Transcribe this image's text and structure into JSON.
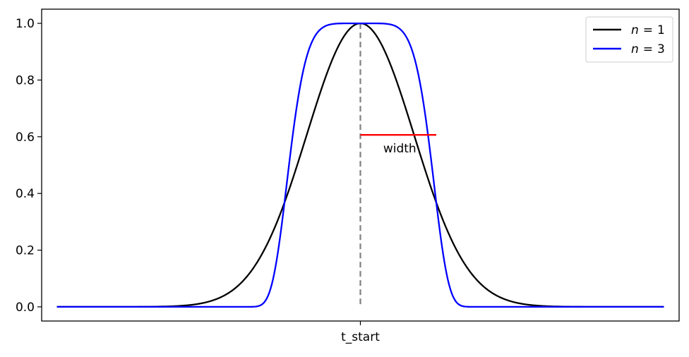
{
  "chart_data": {
    "type": "line",
    "title": "",
    "xlabel": "",
    "ylabel": "",
    "x_range": [
      -4,
      4
    ],
    "xlim": [
      -4.2,
      4.2
    ],
    "ylim": [
      -0.05,
      1.05
    ],
    "yticks": [
      0.0,
      0.2,
      0.4,
      0.6,
      0.8,
      1.0
    ],
    "ytick_labels": [
      "0.0",
      "0.2",
      "0.4",
      "0.6",
      "0.8",
      "1.0"
    ],
    "xticks": [
      0
    ],
    "xtick_labels": [
      "t_start"
    ],
    "grid": false,
    "legend_position": "top-right",
    "series": [
      {
        "name": "n = 1",
        "legend_label": "n",
        "legend_value": "1",
        "color": "#000000",
        "formula": "exp(-(x/width)^2)",
        "x": [
          -4.0,
          -3.5,
          -3.0,
          -2.5,
          -2.0,
          -1.5,
          -1.2,
          -1.0,
          -0.8,
          -0.5,
          -0.25,
          0.0,
          0.25,
          0.5,
          0.8,
          1.0,
          1.2,
          1.5,
          2.0,
          2.5,
          3.0,
          3.5,
          4.0
        ],
        "y": [
          0.0,
          0.0,
          0.001,
          0.01,
          0.04,
          0.16,
          0.27,
          0.37,
          0.53,
          0.78,
          0.94,
          1.0,
          0.94,
          0.78,
          0.53,
          0.37,
          0.27,
          0.16,
          0.04,
          0.01,
          0.001,
          0.0,
          0.0
        ]
      },
      {
        "name": "n = 3",
        "legend_label": "n",
        "legend_value": "3",
        "color": "#0000ff",
        "formula": "exp(-(x/width)^6)",
        "x": [
          -4.0,
          -2.0,
          -1.5,
          -1.3,
          -1.2,
          -1.1,
          -1.0,
          -0.9,
          -0.8,
          -0.6,
          -0.3,
          0.0,
          0.3,
          0.6,
          0.8,
          0.9,
          1.0,
          1.1,
          1.2,
          1.3,
          1.5,
          2.0,
          4.0
        ],
        "y": [
          0.0,
          0.0,
          0.0,
          0.01,
          0.05,
          0.17,
          0.37,
          0.59,
          0.77,
          0.95,
          1.0,
          1.0,
          1.0,
          0.95,
          0.77,
          0.59,
          0.37,
          0.17,
          0.05,
          0.01,
          0.0,
          0.0,
          0.0
        ]
      }
    ],
    "width": 1.0,
    "vline": {
      "x": 0,
      "color": "#808080",
      "style": "dashed"
    },
    "annotation": {
      "text": "width",
      "segment_x": [
        0,
        1.0
      ],
      "segment_y": 0.6065,
      "color": "#ff0000"
    }
  }
}
